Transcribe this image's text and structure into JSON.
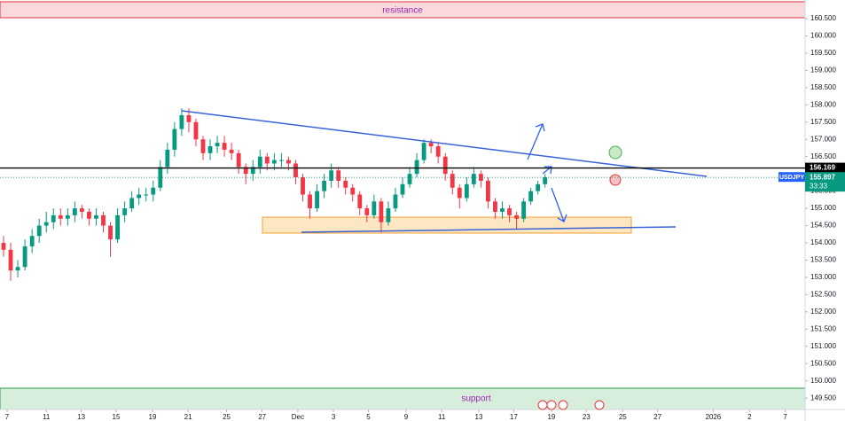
{
  "chart_data": {
    "type": "candlestick",
    "annotations": {
      "resistance": "resistance",
      "support": "support"
    },
    "symbol": "USDJPY",
    "countdown": "33:33",
    "current_price": {
      "value": 155.897,
      "label": "155.897"
    },
    "level": {
      "value": 156.169,
      "label": "156.169"
    },
    "up_color": "#089981",
    "down_color": "#f23645",
    "open": [
      154.0,
      153.8,
      153.2,
      153.3,
      153.9,
      154.2,
      154.5,
      154.6,
      154.8,
      154.7,
      154.8,
      155.0,
      154.9,
      154.7,
      154.8,
      154.5,
      154.1,
      154.8,
      155.0,
      155.3,
      155.4,
      155.4,
      155.6,
      156.2,
      156.7,
      157.3,
      157.7,
      157.5,
      157.0,
      156.6,
      156.8,
      156.9,
      156.7,
      156.6,
      156.2,
      156.0,
      156.2,
      156.5,
      156.3,
      156.4,
      156.4,
      156.3,
      155.9,
      155.4,
      155.0,
      155.5,
      155.8,
      156.1,
      155.8,
      155.6,
      155.4,
      155.0,
      154.8,
      155.2,
      154.6,
      155.0,
      155.4,
      155.7,
      156.0,
      156.4,
      156.9,
      156.8,
      156.5,
      156.0,
      155.6,
      155.3,
      155.7,
      156.0,
      155.8,
      155.2,
      154.9,
      155.0,
      154.8,
      154.7,
      155.2,
      155.5,
      155.7
    ],
    "high": [
      154.2,
      154.0,
      153.5,
      154.1,
      154.4,
      154.7,
      154.9,
      155.0,
      155.0,
      155.0,
      155.2,
      155.1,
      155.0,
      155.0,
      154.9,
      154.6,
      155.0,
      155.2,
      155.5,
      155.6,
      155.6,
      155.8,
      156.4,
      156.9,
      157.5,
      157.9,
      157.9,
      157.6,
      157.1,
      157.0,
      157.1,
      157.1,
      156.9,
      156.7,
      156.3,
      156.4,
      156.7,
      156.6,
      156.6,
      156.6,
      156.5,
      156.4,
      156.0,
      155.5,
      155.7,
      156.0,
      156.3,
      156.2,
      155.9,
      155.7,
      155.5,
      155.1,
      155.4,
      155.3,
      155.2,
      155.6,
      155.9,
      156.2,
      156.6,
      157.0,
      157.0,
      156.9,
      156.6,
      156.1,
      155.7,
      155.9,
      156.2,
      156.1,
      155.9,
      155.3,
      155.2,
      155.1,
      154.9,
      155.3,
      155.6,
      155.8,
      156.0
    ],
    "low": [
      153.6,
      152.9,
      153.0,
      153.2,
      153.7,
      154.0,
      154.3,
      154.4,
      154.5,
      154.5,
      154.6,
      154.7,
      154.5,
      154.5,
      154.3,
      153.6,
      154.0,
      154.6,
      154.9,
      155.1,
      155.2,
      155.2,
      155.5,
      156.0,
      156.5,
      157.1,
      157.2,
      156.8,
      156.4,
      156.4,
      156.6,
      156.5,
      156.4,
      156.0,
      155.7,
      155.8,
      156.0,
      156.1,
      156.1,
      156.2,
      156.1,
      155.7,
      155.2,
      154.7,
      154.9,
      155.3,
      155.6,
      155.6,
      155.4,
      155.2,
      154.8,
      154.6,
      154.7,
      154.3,
      154.5,
      154.9,
      155.3,
      155.6,
      155.9,
      156.3,
      156.6,
      156.3,
      155.8,
      155.4,
      155.0,
      155.2,
      155.6,
      155.6,
      155.0,
      154.7,
      154.7,
      154.6,
      154.4,
      154.6,
      155.1,
      155.4,
      155.6
    ],
    "close": [
      153.8,
      153.2,
      153.3,
      153.9,
      154.2,
      154.5,
      154.6,
      154.8,
      154.7,
      154.8,
      155.0,
      154.9,
      154.7,
      154.8,
      154.5,
      154.1,
      154.8,
      155.0,
      155.3,
      155.4,
      155.4,
      155.6,
      156.2,
      156.7,
      157.3,
      157.7,
      157.5,
      157.0,
      156.6,
      156.8,
      156.9,
      156.7,
      156.6,
      156.2,
      156.0,
      156.2,
      156.5,
      156.3,
      156.4,
      156.4,
      156.3,
      155.9,
      155.4,
      155.0,
      155.5,
      155.8,
      156.1,
      155.8,
      155.6,
      155.4,
      155.0,
      154.8,
      155.2,
      154.6,
      155.0,
      155.4,
      155.7,
      156.0,
      156.4,
      156.9,
      156.8,
      156.5,
      156.0,
      155.6,
      155.3,
      155.7,
      156.0,
      155.8,
      155.2,
      154.9,
      155.0,
      154.8,
      154.7,
      155.2,
      155.5,
      155.7,
      155.9
    ],
    "xlim": [
      0,
      113
    ],
    "xticks": [
      {
        "value": 1,
        "label": "7"
      },
      {
        "value": 6.5,
        "label": "11"
      },
      {
        "value": 11.4,
        "label": "13"
      },
      {
        "value": 16.3,
        "label": "15"
      },
      {
        "value": 21.4,
        "label": "19"
      },
      {
        "value": 26.4,
        "label": "21"
      },
      {
        "value": 31.8,
        "label": "25"
      },
      {
        "value": 36.8,
        "label": "27"
      },
      {
        "value": 41.8,
        "label": "Dec"
      },
      {
        "value": 46.8,
        "label": "3"
      },
      {
        "value": 51.7,
        "label": "5"
      },
      {
        "value": 57,
        "label": "9"
      },
      {
        "value": 62,
        "label": "11"
      },
      {
        "value": 67.2,
        "label": "13"
      },
      {
        "value": 72.1,
        "label": "17"
      },
      {
        "value": 77.4,
        "label": "19"
      },
      {
        "value": 82.3,
        "label": "23"
      },
      {
        "value": 87.4,
        "label": "25"
      },
      {
        "value": 92.3,
        "label": "27"
      },
      {
        "value": 100.1,
        "label": "2026"
      },
      {
        "value": 105.2,
        "label": "2"
      },
      {
        "value": 110.2,
        "label": "7"
      }
    ],
    "ylim": [
      149.17,
      161.04
    ],
    "yticks": [
      {
        "value": 149.5,
        "label": "149.500"
      },
      {
        "value": 150,
        "label": "150.000"
      },
      {
        "value": 150.5,
        "label": "150.500"
      },
      {
        "value": 151,
        "label": "151.000"
      },
      {
        "value": 151.5,
        "label": "151.500"
      },
      {
        "value": 152,
        "label": "152.000"
      },
      {
        "value": 152.5,
        "label": "152.500"
      },
      {
        "value": 153,
        "label": "153.000"
      },
      {
        "value": 153.5,
        "label": "153.500"
      },
      {
        "value": 154,
        "label": "154.000"
      },
      {
        "value": 154.5,
        "label": "154.500"
      },
      {
        "value": 155,
        "label": "155.000"
      },
      {
        "value": 155.5,
        "label": "155.500"
      },
      {
        "value": 156,
        "label": "156.000"
      },
      {
        "value": 156.5,
        "label": "156.500"
      },
      {
        "value": 157,
        "label": "157.000"
      },
      {
        "value": 157.5,
        "label": "157.500"
      },
      {
        "value": 158,
        "label": "158.000"
      },
      {
        "value": 158.5,
        "label": "158.500"
      },
      {
        "value": 159,
        "label": "159.000"
      },
      {
        "value": 159.5,
        "label": "159.500"
      },
      {
        "value": 160,
        "label": "160.000"
      },
      {
        "value": 160.5,
        "label": "160.500"
      }
    ],
    "grid": false
  }
}
